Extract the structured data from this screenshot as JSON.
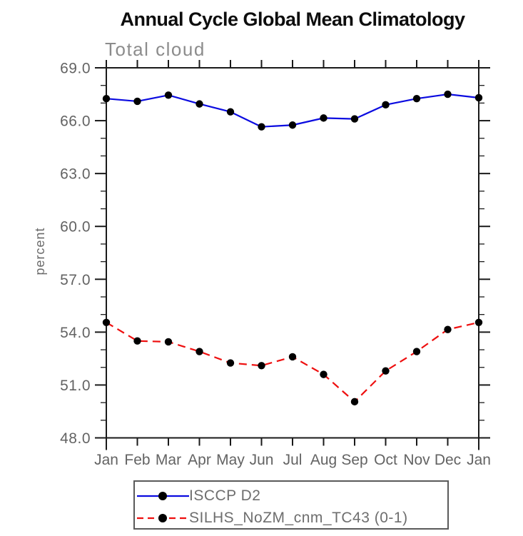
{
  "page": {
    "title": "Annual Cycle Global Mean Climatology",
    "subtitle": "Total cloud"
  },
  "chart_data": {
    "type": "line",
    "title": "Annual Cycle Global Mean Climatology",
    "subtitle": "Total cloud",
    "xlabel": "",
    "ylabel": "percent",
    "categories": [
      "Jan",
      "Feb",
      "Mar",
      "Apr",
      "May",
      "Jun",
      "Jul",
      "Aug",
      "Sep",
      "Oct",
      "Nov",
      "Dec",
      "Jan"
    ],
    "ylim": [
      48.0,
      69.0
    ],
    "ytick_interval_major": 3.0,
    "ytick_interval_minor": 1.0,
    "ytick_labels": [
      "48.0",
      "51.0",
      "54.0",
      "57.0",
      "60.0",
      "63.0",
      "66.0",
      "69.0"
    ],
    "grid": false,
    "frame": "box-with-outward-ticks",
    "legend_position": "bottom-center",
    "marker": {
      "shape": "filled-circle",
      "color": "#000000",
      "radius_px": 5.2
    },
    "series": [
      {
        "name": "ISCCP D2",
        "color": "#0b0be0",
        "line_style": "solid",
        "values": [
          67.25,
          67.1,
          67.45,
          66.95,
          66.5,
          65.65,
          65.75,
          66.15,
          66.1,
          66.9,
          67.25,
          67.5,
          67.3
        ]
      },
      {
        "name": "SILHS_NoZM_cnm_TC43 (0-1)",
        "color": "#ee0f0f",
        "line_style": "dashed",
        "values": [
          54.55,
          53.5,
          53.45,
          52.9,
          52.25,
          52.1,
          52.6,
          51.6,
          50.05,
          51.8,
          52.9,
          54.15,
          54.55
        ]
      }
    ]
  },
  "colors": {
    "title_text": "#0d0d0d",
    "muted_text": "#6e6e6e",
    "axis": "#1a1a1a",
    "background": "#ffffff"
  }
}
